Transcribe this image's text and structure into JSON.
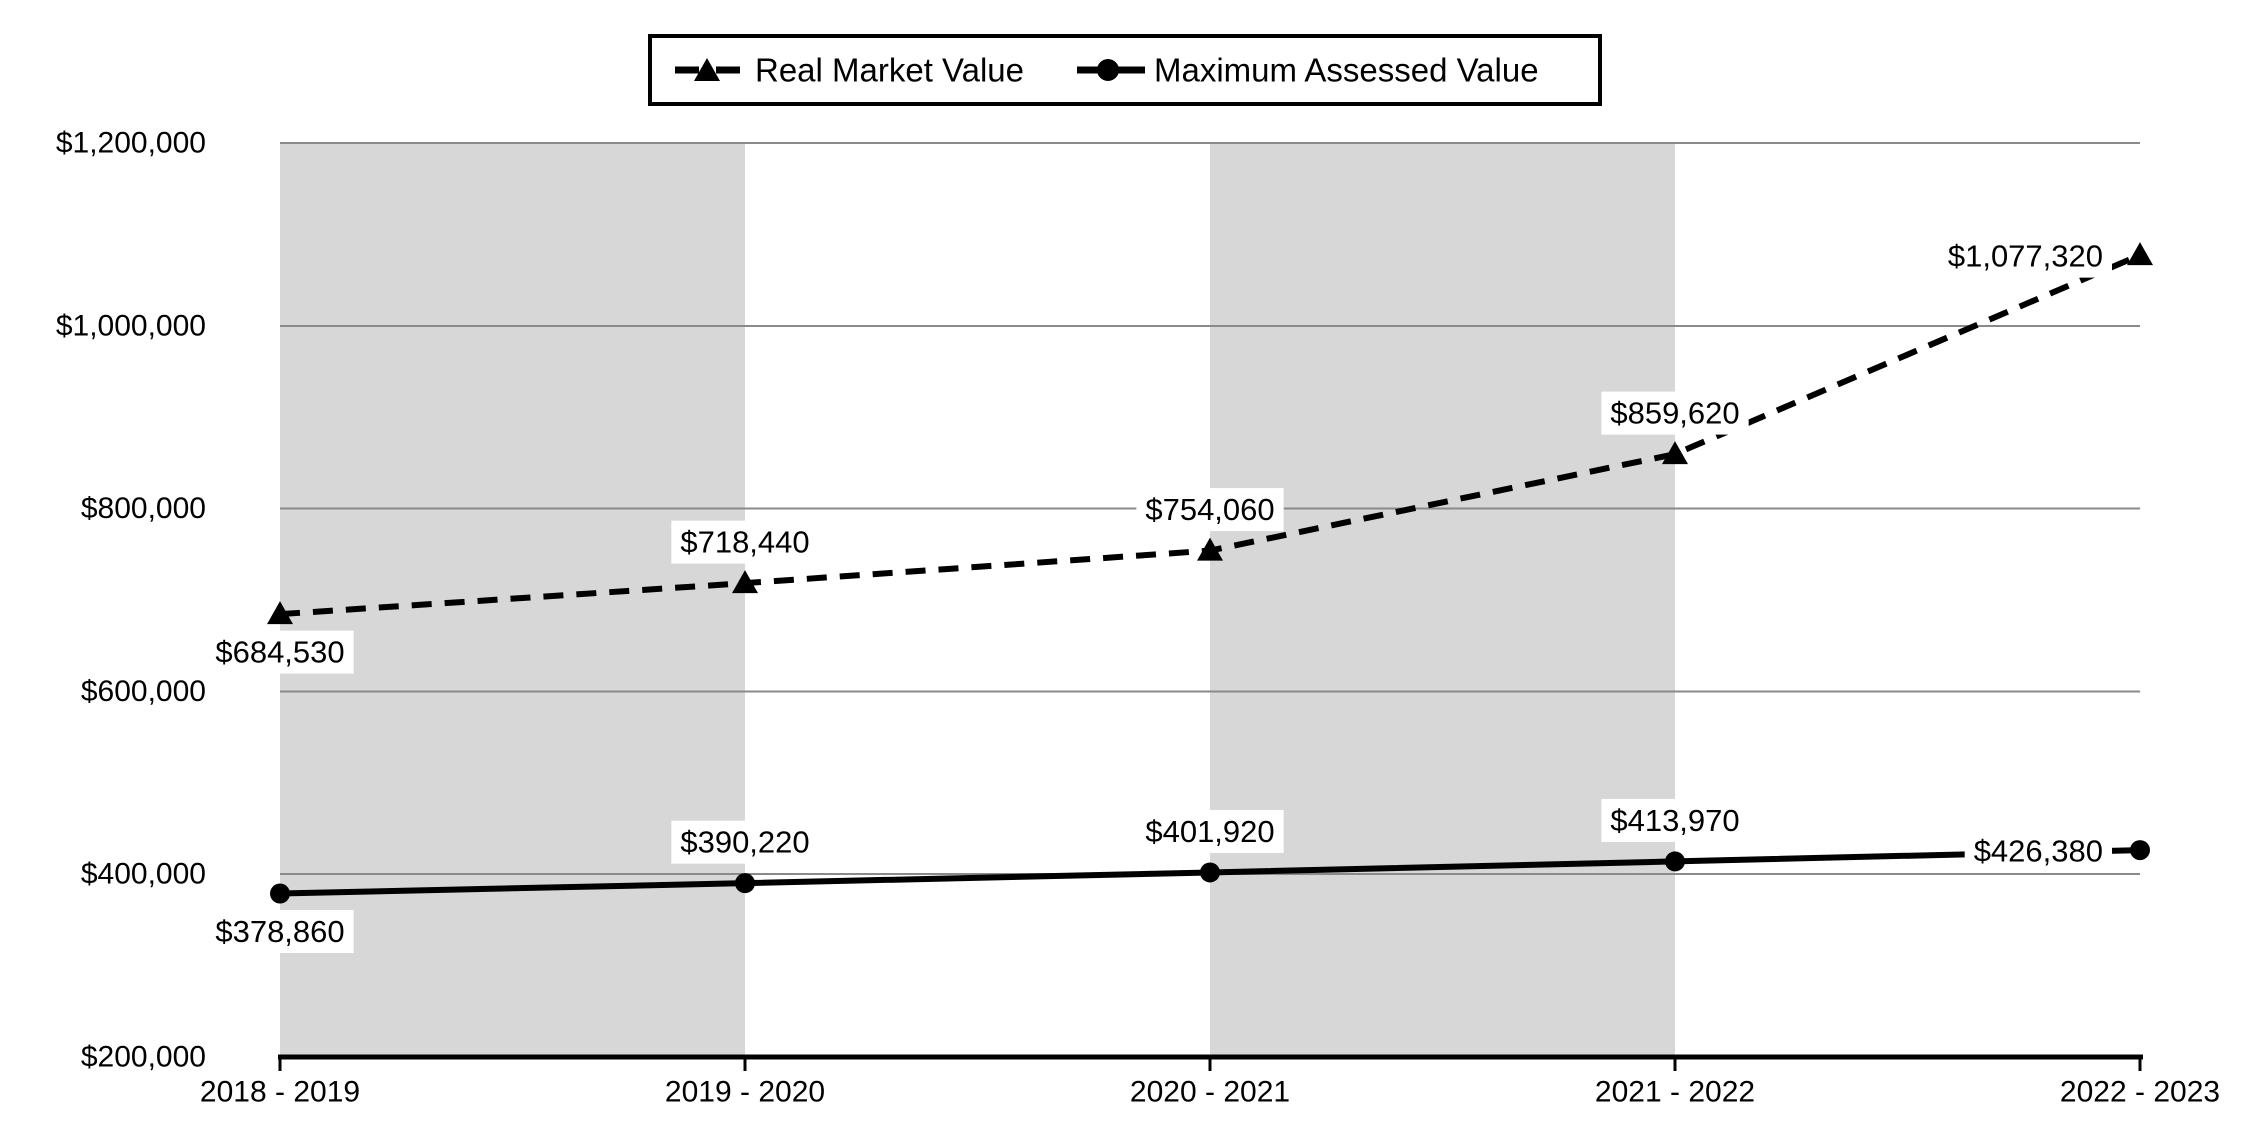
{
  "page": {
    "background": "#ffffff"
  },
  "chart_data": {
    "type": "line",
    "categories": [
      "2018 - 2019",
      "2019 - 2020",
      "2020 - 2021",
      "2021 - 2022",
      "2022 - 2023"
    ],
    "series": [
      {
        "name": "Real Market Value",
        "line_style": "dashed",
        "marker": "triangle",
        "color": "#000000",
        "values": [
          684530,
          718440,
          754060,
          859620,
          1077320
        ],
        "data_labels": [
          "$684,530",
          "$718,440",
          "$754,060",
          "$859,620",
          "$1,077,320"
        ],
        "label_placement": [
          "below",
          "above",
          "above",
          "above",
          "left"
        ]
      },
      {
        "name": "Maximum Assessed Value",
        "line_style": "solid",
        "marker": "circle",
        "color": "#000000",
        "values": [
          378860,
          390220,
          401920,
          413970,
          426380
        ],
        "data_labels": [
          "$378,860",
          "$390,220",
          "$401,920",
          "$413,970",
          "$426,380"
        ],
        "label_placement": [
          "below",
          "above",
          "above",
          "above",
          "left"
        ]
      }
    ],
    "ylim": [
      200000,
      1200000
    ],
    "ytick_interval": 200000,
    "ytick_labels": [
      "$200,000",
      "$400,000",
      "$600,000",
      "$800,000",
      "$1,000,000",
      "$1,200,000"
    ],
    "grid": "horizontal-major",
    "legend_position": "top-center",
    "shaded_category_slots": [
      0,
      2
    ],
    "colors": {
      "band": "#d7d7d7",
      "gridline": "#8a8a8a",
      "axis": "#000000",
      "text": "#000000",
      "label_bg": "#ffffff",
      "legend_border": "#000000"
    }
  }
}
